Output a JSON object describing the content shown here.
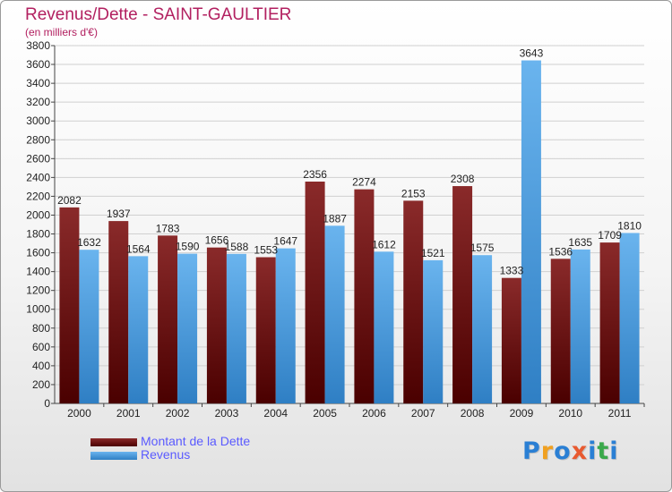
{
  "title": "Revenus/Dette - SAINT-GAULTIER",
  "subtitle": "(en milliers d'€)",
  "colors": {
    "title": "#b22060",
    "dette_top": "#8a2a2a",
    "dette_bottom": "#4a0000",
    "revenus_top": "#6ab4ee",
    "revenus_bottom": "#2f7fc4",
    "legend_text": "#5a5aff",
    "grid": "#d0d0d0"
  },
  "chart_data": {
    "type": "bar",
    "title": "Revenus/Dette - SAINT-GAULTIER",
    "ylabel": "(en milliers d'€)",
    "xlabel": "",
    "ylim": [
      0,
      3800
    ],
    "ytick_step": 200,
    "grid": true,
    "legend_position": "bottom-left",
    "categories": [
      "2000",
      "2001",
      "2002",
      "2003",
      "2004",
      "2005",
      "2006",
      "2007",
      "2008",
      "2009",
      "2010",
      "2011"
    ],
    "series": [
      {
        "name": "Montant de la Dette",
        "values": [
          2082,
          1937,
          1783,
          1656,
          1553,
          2356,
          2274,
          2153,
          2308,
          1333,
          1536,
          1709
        ],
        "labels": [
          "2082",
          "1937",
          "1783",
          "1656",
          "1553",
          "2356",
          "2274",
          "2153",
          "2308",
          "1333",
          "1536",
          "1709"
        ]
      },
      {
        "name": "Revenus",
        "values": [
          1632,
          1564,
          1590,
          1588,
          1647,
          1887,
          1612,
          1521,
          1575,
          3643,
          1635,
          1810
        ],
        "labels": [
          "1632",
          "1564",
          "1590",
          "1588",
          "1647",
          "1887",
          "1612",
          "1521",
          "1575",
          "3643",
          "1635",
          "1810"
        ]
      }
    ]
  },
  "legend": {
    "items": [
      {
        "label": "Montant de la Dette"
      },
      {
        "label": "Revenus"
      }
    ]
  },
  "logo": {
    "letters": [
      "P",
      "r",
      "o",
      "x",
      "i",
      "t",
      "i"
    ],
    "colors": [
      "#2a7fd4",
      "#f0a020",
      "#2a7fd4",
      "#e85a30",
      "#2a7fd4",
      "#3aa84a",
      "#2a7fd4"
    ]
  }
}
